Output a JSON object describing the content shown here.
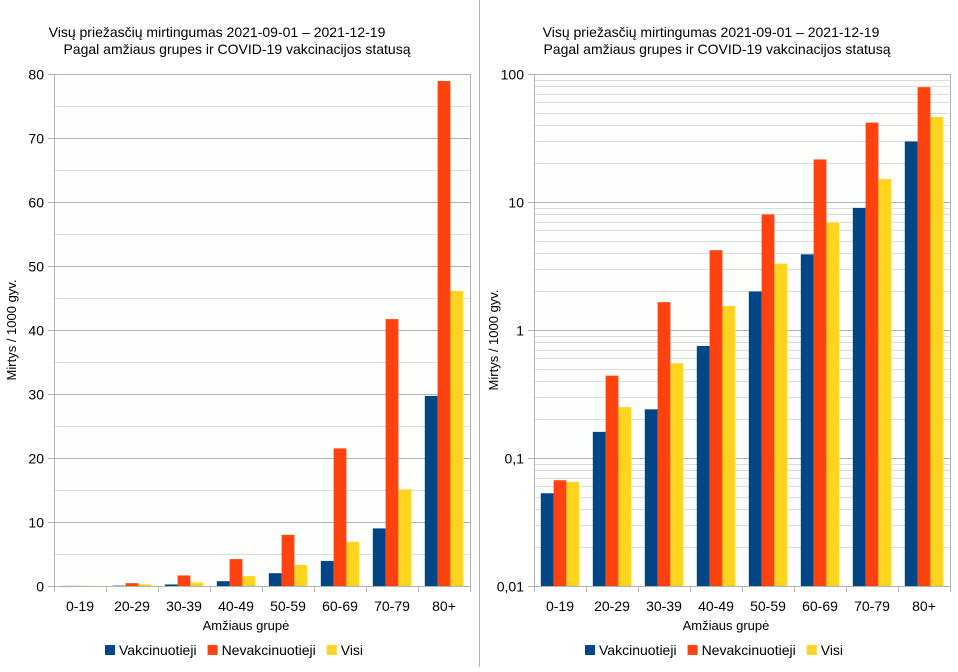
{
  "colors": {
    "vaccinated": "#004586",
    "unvaccinated": "#ff420e",
    "all": "#ffd320",
    "major_grid": "#b3b3b3",
    "minor_grid": "#dddddd",
    "axis": "#b3b3b3",
    "plot_bg": "#fdfffd"
  },
  "chart_data": [
    {
      "type": "bar",
      "scale": "linear",
      "title": "Visų priežasčių mirtingumas 2021-09-01 – 2021-12-19",
      "subtitle": "Pagal amžiaus grupes ir COVID-19 vakcinacijos statusą",
      "xlabel": "Amžiaus grupė",
      "ylabel": "Mirtys / 1000 gyv.",
      "ylim": [
        0,
        80
      ],
      "yticks": [
        0,
        10,
        20,
        30,
        40,
        50,
        60,
        70,
        80
      ],
      "ytick_labels": [
        "0",
        "10",
        "20",
        "30",
        "40",
        "50",
        "60",
        "70",
        "80"
      ],
      "minor_yticks": [
        5,
        15,
        25,
        35,
        45,
        55,
        65,
        75
      ],
      "grid": true,
      "legend_position": "bottom",
      "categories": [
        "0-19",
        "20-29",
        "30-39",
        "40-49",
        "50-59",
        "60-69",
        "70-79",
        "80+"
      ],
      "series": [
        {
          "name": "Vakcinuotieji",
          "color_key": "vaccinated",
          "values": [
            0.053,
            0.16,
            0.24,
            0.75,
            2.0,
            3.9,
            9.0,
            29.7
          ]
        },
        {
          "name": "Nevakcinuotieji",
          "color_key": "unvaccinated",
          "values": [
            0.067,
            0.44,
            1.65,
            4.2,
            8.0,
            21.5,
            41.7,
            78.9
          ]
        },
        {
          "name": "Visi",
          "color_key": "all",
          "values": [
            0.065,
            0.25,
            0.55,
            1.54,
            3.3,
            6.9,
            15.1,
            46.1
          ]
        }
      ]
    },
    {
      "type": "bar",
      "scale": "log",
      "title": "Visų priežasčių mirtingumas 2021-09-01 – 2021-12-19",
      "subtitle": "Pagal amžiaus grupes ir COVID-19 vakcinacijos statusą",
      "xlabel": "Amžiaus grupė",
      "ylabel": "Mirtys / 1000 gyv.",
      "ylim": [
        0.01,
        100
      ],
      "yticks": [
        0.01,
        0.1,
        1,
        10,
        100
      ],
      "ytick_labels": [
        "0,01",
        "0,1",
        "1",
        "10",
        "100"
      ],
      "minor_yticks": "2-9 × each decade",
      "grid": true,
      "legend_position": "bottom",
      "categories": [
        "0-19",
        "20-29",
        "30-39",
        "40-49",
        "50-59",
        "60-69",
        "70-79",
        "80+"
      ],
      "series": [
        {
          "name": "Vakcinuotieji",
          "color_key": "vaccinated",
          "values": [
            0.053,
            0.16,
            0.24,
            0.75,
            2.0,
            3.9,
            9.0,
            29.7
          ]
        },
        {
          "name": "Nevakcinuotieji",
          "color_key": "unvaccinated",
          "values": [
            0.067,
            0.44,
            1.65,
            4.2,
            8.0,
            21.5,
            41.7,
            78.9
          ]
        },
        {
          "name": "Visi",
          "color_key": "all",
          "values": [
            0.065,
            0.25,
            0.55,
            1.54,
            3.3,
            6.9,
            15.1,
            46.1
          ]
        }
      ]
    }
  ]
}
